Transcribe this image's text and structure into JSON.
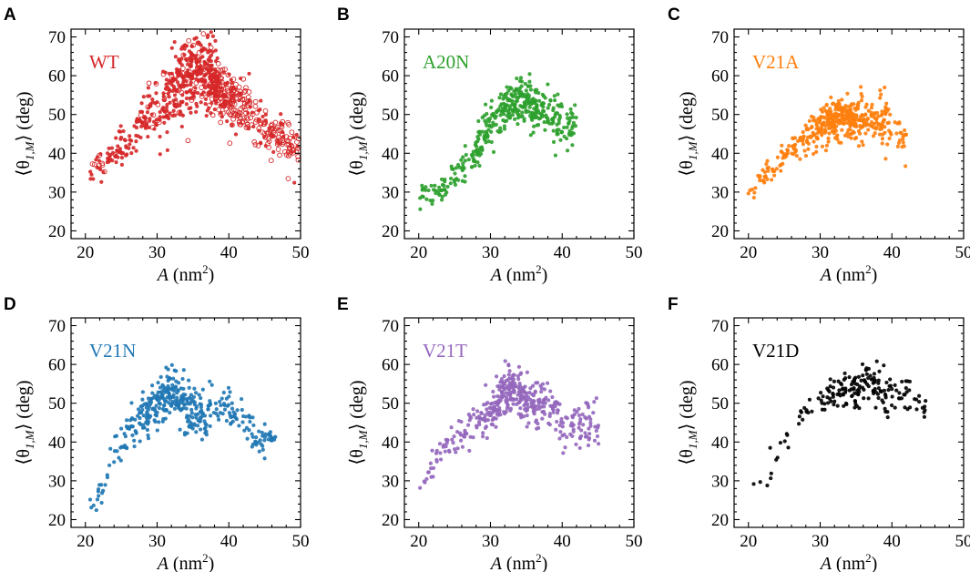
{
  "chart_data": [
    {
      "panel": "A",
      "type": "scatter",
      "label": "WT",
      "color": "#d62728",
      "marker": "mixed-filled-and-open",
      "xlabel_italic": "A",
      "xlabel_unit": " (nm",
      "xlabel_sup": "2",
      "xlabel_close": ")",
      "ylabel_open": "⟨θ",
      "ylabel_sub": "1,M",
      "ylabel_close": "⟩ (deg)",
      "xlim": [
        18,
        50
      ],
      "ylim": [
        18,
        72
      ],
      "xticks": [
        20,
        30,
        40,
        50
      ],
      "yticks": [
        20,
        30,
        40,
        50,
        60,
        70
      ],
      "trend": [
        [
          20.5,
          34
        ],
        [
          22,
          37
        ],
        [
          24,
          40
        ],
        [
          26,
          44
        ],
        [
          27.5,
          48
        ],
        [
          29,
          50
        ],
        [
          30.5,
          52
        ],
        [
          32,
          55
        ],
        [
          33.5,
          58
        ],
        [
          35,
          62
        ],
        [
          36,
          64
        ],
        [
          37,
          61
        ],
        [
          38,
          58
        ],
        [
          39,
          56
        ],
        [
          40,
          55
        ],
        [
          41,
          53
        ],
        [
          42,
          52
        ],
        [
          43,
          50
        ],
        [
          44,
          48
        ],
        [
          45,
          46
        ],
        [
          46,
          45
        ],
        [
          47,
          44
        ],
        [
          48,
          43
        ],
        [
          49,
          42
        ],
        [
          50,
          41
        ]
      ],
      "trend_spread": [
        [
          20,
          1.5
        ],
        [
          28,
          3
        ],
        [
          32,
          5
        ],
        [
          35.5,
          6
        ],
        [
          38,
          4
        ],
        [
          42,
          3
        ],
        [
          50,
          3
        ]
      ]
    },
    {
      "panel": "B",
      "type": "scatter",
      "label": "A20N",
      "color": "#2ca02c",
      "marker": "filled",
      "xlabel_italic": "A",
      "xlabel_unit": " (nm",
      "xlabel_sup": "2",
      "xlabel_close": ")",
      "ylabel_open": "⟨θ",
      "ylabel_sub": "1,M",
      "ylabel_close": "⟩ (deg)",
      "xlim": [
        18,
        50
      ],
      "ylim": [
        18,
        72
      ],
      "xticks": [
        20,
        30,
        40,
        50
      ],
      "yticks": [
        20,
        30,
        40,
        50,
        60,
        70
      ],
      "trend": [
        [
          20,
          29
        ],
        [
          22,
          30
        ],
        [
          24,
          32
        ],
        [
          25.5,
          35
        ],
        [
          27,
          38
        ],
        [
          28.5,
          43
        ],
        [
          30,
          47
        ],
        [
          31.5,
          50
        ],
        [
          33,
          53
        ],
        [
          34.5,
          54
        ],
        [
          36,
          52
        ],
        [
          37.5,
          51
        ],
        [
          39,
          49
        ],
        [
          40.5,
          48
        ],
        [
          42,
          47
        ]
      ],
      "trend_spread": [
        [
          20,
          1.5
        ],
        [
          26,
          2.5
        ],
        [
          30,
          3
        ],
        [
          34,
          3
        ],
        [
          38,
          3
        ],
        [
          42,
          3
        ]
      ]
    },
    {
      "panel": "C",
      "type": "scatter",
      "label": "V21A",
      "color": "#ff7f0e",
      "marker": "filled",
      "xlabel_italic": "A",
      "xlabel_unit": " (nm",
      "xlabel_sup": "2",
      "xlabel_close": ")",
      "ylabel_open": "⟨θ",
      "ylabel_sub": "1,M",
      "ylabel_close": "⟩ (deg)",
      "xlim": [
        18,
        50
      ],
      "ylim": [
        18,
        72
      ],
      "xticks": [
        20,
        30,
        40,
        50
      ],
      "yticks": [
        20,
        30,
        40,
        50,
        60,
        70
      ],
      "trend": [
        [
          19.5,
          29
        ],
        [
          21,
          32
        ],
        [
          22.5,
          35
        ],
        [
          24,
          37
        ],
        [
          26,
          41
        ],
        [
          27.5,
          43
        ],
        [
          29,
          45
        ],
        [
          31,
          48
        ],
        [
          33,
          49
        ],
        [
          35,
          49
        ],
        [
          37,
          49
        ],
        [
          39,
          48
        ],
        [
          40,
          46
        ],
        [
          41,
          44
        ],
        [
          42,
          42
        ]
      ],
      "trend_spread": [
        [
          20,
          1
        ],
        [
          26,
          2
        ],
        [
          30,
          2.5
        ],
        [
          35,
          3
        ],
        [
          39,
          3.5
        ],
        [
          42,
          4
        ]
      ]
    },
    {
      "panel": "D",
      "type": "scatter",
      "label": "V21N",
      "color": "#1f77b4",
      "marker": "filled",
      "xlabel_italic": "A",
      "xlabel_unit": " (nm",
      "xlabel_sup": "2",
      "xlabel_close": ")",
      "ylabel_open": "⟨θ",
      "ylabel_sub": "1,M",
      "ylabel_close": "⟩ (deg)",
      "xlim": [
        18,
        50
      ],
      "ylim": [
        18,
        72
      ],
      "xticks": [
        20,
        30,
        40,
        50
      ],
      "yticks": [
        20,
        30,
        40,
        50,
        60,
        70
      ],
      "trend": [
        [
          20.5,
          22
        ],
        [
          21.5,
          25
        ],
        [
          22.5,
          30
        ],
        [
          23.5,
          35
        ],
        [
          24.5,
          39
        ],
        [
          26,
          43
        ],
        [
          28,
          46
        ],
        [
          30,
          50
        ],
        [
          32,
          53
        ],
        [
          33.5,
          51
        ],
        [
          35,
          47
        ],
        [
          36.5,
          47
        ],
        [
          38,
          49
        ],
        [
          40,
          47
        ],
        [
          42,
          46
        ],
        [
          43.5,
          43
        ],
        [
          45,
          41
        ],
        [
          46.5,
          40
        ]
      ],
      "trend_spread": [
        [
          20,
          1.5
        ],
        [
          24,
          2.5
        ],
        [
          30,
          3
        ],
        [
          34,
          3.5
        ],
        [
          38,
          3
        ],
        [
          42,
          3
        ],
        [
          46,
          2
        ]
      ]
    },
    {
      "panel": "E",
      "type": "scatter",
      "label": "V21T",
      "color": "#9467bd",
      "marker": "filled",
      "xlabel_italic": "A",
      "xlabel_unit": " (nm",
      "xlabel_sup": "2",
      "xlabel_close": ")",
      "ylabel_open": "⟨θ",
      "ylabel_sub": "1,M",
      "ylabel_close": "⟩ (deg)",
      "xlim": [
        18,
        50
      ],
      "ylim": [
        18,
        72
      ],
      "xticks": [
        20,
        30,
        40,
        50
      ],
      "yticks": [
        20,
        30,
        40,
        50,
        60,
        70
      ],
      "trend": [
        [
          20,
          29
        ],
        [
          22,
          35
        ],
        [
          24,
          38
        ],
        [
          26,
          41
        ],
        [
          28,
          45
        ],
        [
          30,
          48
        ],
        [
          32,
          52
        ],
        [
          33.5,
          54
        ],
        [
          35,
          51
        ],
        [
          37,
          50
        ],
        [
          39,
          48
        ],
        [
          40.5,
          45
        ],
        [
          42,
          44
        ],
        [
          44,
          44
        ],
        [
          45.5,
          46
        ]
      ],
      "trend_spread": [
        [
          20,
          1.5
        ],
        [
          26,
          2.5
        ],
        [
          32,
          3
        ],
        [
          36,
          3
        ],
        [
          40,
          3.5
        ],
        [
          45,
          3
        ]
      ]
    },
    {
      "panel": "F",
      "type": "scatter",
      "label": "V21D",
      "color": "#000000",
      "marker": "filled",
      "xlabel_italic": "A",
      "xlabel_unit": " (nm",
      "xlabel_sup": "2",
      "xlabel_close": ")",
      "ylabel_open": "⟨θ",
      "ylabel_sub": "1,M",
      "ylabel_close": "⟩ (deg)",
      "xlim": [
        18,
        50
      ],
      "ylim": [
        18,
        72
      ],
      "xticks": [
        20,
        30,
        40,
        50
      ],
      "yticks": [
        20,
        30,
        40,
        50,
        60,
        70
      ],
      "trend": [
        [
          20,
          27
        ],
        [
          21.5,
          29
        ],
        [
          23,
          33
        ],
        [
          24.5,
          37
        ],
        [
          26,
          42
        ],
        [
          27.5,
          46
        ],
        [
          29,
          50
        ],
        [
          31,
          52
        ],
        [
          33,
          53
        ],
        [
          35,
          54
        ],
        [
          36.5,
          57
        ],
        [
          37.5,
          55
        ],
        [
          39,
          52
        ],
        [
          41,
          52
        ],
        [
          43,
          51
        ],
        [
          45,
          49
        ]
      ],
      "trend_spread": [
        [
          20,
          1
        ],
        [
          26,
          2
        ],
        [
          30,
          2
        ],
        [
          35,
          2.5
        ],
        [
          37,
          3
        ],
        [
          40,
          2.5
        ],
        [
          45,
          1.5
        ]
      ]
    }
  ]
}
